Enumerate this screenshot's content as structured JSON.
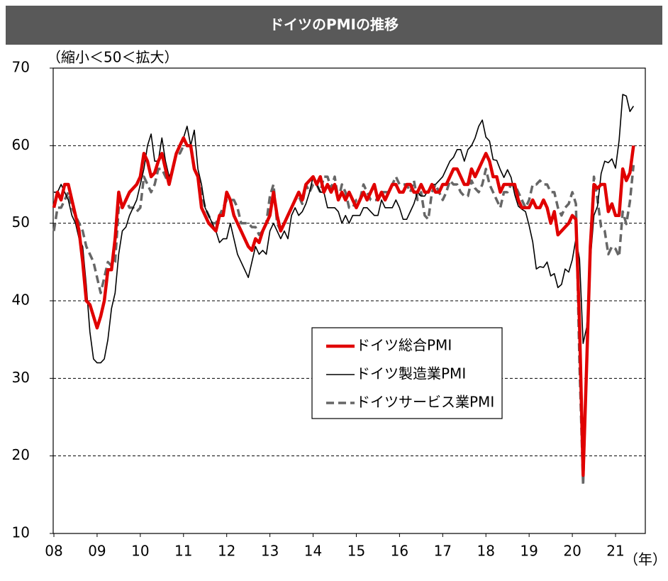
{
  "chart_data": {
    "type": "line",
    "title": "ドイツのPMIの推移",
    "y_axis_label": "（縮小＜50＜拡大）",
    "x_axis_label": "（年）",
    "categories": [
      "08",
      null,
      null,
      null,
      null,
      null,
      null,
      null,
      null,
      null,
      null,
      null,
      "09",
      null,
      null,
      null,
      null,
      null,
      null,
      null,
      null,
      null,
      null,
      null,
      "10",
      null,
      null,
      null,
      null,
      null,
      null,
      null,
      null,
      null,
      null,
      null,
      "11",
      null,
      null,
      null,
      null,
      null,
      null,
      null,
      null,
      null,
      null,
      null,
      "12",
      null,
      null,
      null,
      null,
      null,
      null,
      null,
      null,
      null,
      null,
      null,
      "13",
      null,
      null,
      null,
      null,
      null,
      null,
      null,
      null,
      null,
      null,
      null,
      "14",
      null,
      null,
      null,
      null,
      null,
      null,
      null,
      null,
      null,
      null,
      null,
      "15",
      null,
      null,
      null,
      null,
      null,
      null,
      null,
      null,
      null,
      null,
      null,
      "16",
      null,
      null,
      null,
      null,
      null,
      null,
      null,
      null,
      null,
      null,
      null,
      "17",
      null,
      null,
      null,
      null,
      null,
      null,
      null,
      null,
      null,
      null,
      null,
      "18",
      null,
      null,
      null,
      null,
      null,
      null,
      null,
      null,
      null,
      null,
      null,
      "19",
      null,
      null,
      null,
      null,
      null,
      null,
      null,
      null,
      null,
      null,
      null,
      "20",
      null,
      null,
      null,
      null,
      null,
      null,
      null,
      null,
      null,
      null,
      null,
      "21",
      null,
      null,
      null,
      null,
      null
    ],
    "series": [
      {
        "name": "ドイツサービス業PMI",
        "color": "#666666",
        "style": "dashed",
        "values": [
          49,
          52,
          52,
          53,
          54,
          52,
          51,
          50,
          49,
          47,
          46,
          45,
          43,
          41,
          43,
          45,
          44.5,
          45,
          52,
          52,
          53,
          52,
          52,
          51.5,
          52,
          56,
          55,
          54,
          55,
          57,
          57,
          56,
          55,
          57,
          59,
          59,
          60,
          60,
          60,
          57,
          56,
          54,
          52,
          51,
          50,
          50,
          51,
          52,
          53,
          53,
          53,
          52,
          50,
          50,
          50,
          49.5,
          49.5,
          48.5,
          49,
          50,
          53.5,
          55,
          50,
          49,
          50,
          51,
          52,
          53,
          53.5,
          52.5,
          55,
          54,
          55,
          55,
          54,
          56,
          56,
          54.5,
          56,
          53,
          55,
          54,
          52,
          52,
          53,
          53,
          55,
          54,
          53,
          53,
          53,
          54,
          54,
          54,
          55,
          56,
          55,
          55,
          55,
          54,
          55.5,
          53,
          54,
          51,
          50.5,
          54,
          55,
          54,
          53,
          54,
          55.5,
          55,
          55,
          54,
          53.5,
          53.5,
          55.5,
          54.5,
          54,
          55,
          57,
          55,
          54,
          53,
          52,
          54,
          54,
          55,
          55,
          54,
          53,
          52,
          53,
          55,
          55,
          55.5,
          55,
          55,
          54,
          54,
          52,
          51,
          52,
          52.5,
          54,
          52.5,
          31.7,
          16.2,
          32.6,
          47,
          56,
          53,
          49.5,
          49,
          46,
          47,
          46.7,
          45.7,
          51.5,
          49.9,
          52.8,
          57.5
        ]
      },
      {
        "name": "ドイツ製造業PMI",
        "color": "#000000",
        "style": "thin",
        "values": [
          54,
          54,
          55,
          54,
          53,
          51,
          50,
          48,
          47,
          42,
          36,
          32.5,
          32,
          32,
          32.5,
          35,
          39,
          41,
          46,
          49,
          49.5,
          51,
          52,
          53,
          55,
          57,
          60,
          61.5,
          58,
          58,
          61,
          58,
          56,
          57,
          59,
          60,
          61,
          62.5,
          60,
          62,
          57,
          55,
          52,
          51,
          50,
          49,
          47.5,
          48,
          48,
          50,
          48,
          46,
          45,
          44,
          43,
          45,
          47,
          46,
          46.5,
          46,
          49,
          50,
          49,
          48,
          49,
          48,
          51,
          52,
          51,
          51.5,
          52.5,
          54,
          56,
          55,
          54,
          54,
          52,
          52,
          52,
          51.5,
          50,
          51,
          50,
          51,
          51,
          51,
          52,
          52,
          51.5,
          51,
          51,
          53,
          52,
          52,
          52,
          53,
          52,
          50.5,
          50.5,
          51.5,
          52.5,
          54,
          53.5,
          53.5,
          54.3,
          55,
          55,
          55.5,
          56,
          57,
          58,
          58.5,
          59.5,
          59.5,
          58,
          59.5,
          60,
          61,
          62.5,
          63.3,
          61.1,
          60.6,
          58.2,
          58.1,
          56.9,
          55.9,
          56.9,
          55.9,
          53.7,
          52.2,
          51.8,
          51.5,
          49.7,
          47.6,
          44.1,
          44.4,
          44.3,
          45,
          43.2,
          43.5,
          41.7,
          42.1,
          44.1,
          43.7,
          45.3,
          48,
          45.4,
          34.5,
          36.6,
          45.2,
          51,
          52.2,
          56.4,
          58,
          57.8,
          58.3,
          57.1,
          60.7,
          66.6,
          66.4,
          64.4,
          65.1
        ]
      },
      {
        "name": "ドイツ総合PMI",
        "color": "#e00000",
        "style": "thick",
        "values": [
          52,
          54,
          53,
          55,
          55,
          53,
          51,
          49,
          45,
          40,
          39.5,
          38,
          36.5,
          38,
          40,
          44,
          44,
          48,
          54,
          52,
          53,
          54,
          54.5,
          55,
          56,
          59,
          58,
          56,
          56.5,
          58,
          59,
          57,
          55,
          57,
          59,
          60,
          61,
          60,
          60,
          57,
          56,
          52,
          51,
          50,
          49.5,
          49,
          51,
          51,
          54,
          53,
          51,
          50,
          49,
          48,
          47,
          46.5,
          48,
          47.5,
          49,
          50,
          51,
          54,
          51,
          49,
          50,
          51,
          52,
          53,
          54,
          53,
          55,
          55.5,
          56,
          55,
          56,
          54,
          55,
          54,
          55,
          53,
          54,
          53,
          54,
          53,
          52,
          53,
          54,
          53,
          54,
          55,
          53,
          54,
          53,
          54,
          55,
          55,
          54,
          54,
          55,
          55,
          54,
          54,
          55,
          54,
          54,
          55,
          54,
          54,
          55,
          55,
          56,
          57,
          57,
          56,
          55,
          55,
          57,
          56,
          57,
          58,
          59,
          58,
          56,
          56,
          54,
          55,
          55,
          55,
          55,
          53,
          52,
          52,
          52,
          53,
          52,
          52,
          53,
          52,
          50,
          51.5,
          48.5,
          49,
          49.5,
          50,
          51,
          50.5,
          37,
          17.5,
          32,
          47,
          55,
          54.5,
          55,
          55,
          51.5,
          52.5,
          51,
          51,
          57,
          55.5,
          56.5,
          60
        ]
      }
    ],
    "legend_order": [
      2,
      1,
      0
    ],
    "legend": "center",
    "ylim": [
      10,
      70
    ],
    "yticks": [
      10,
      20,
      30,
      40,
      50,
      60,
      70
    ],
    "grid": true
  }
}
